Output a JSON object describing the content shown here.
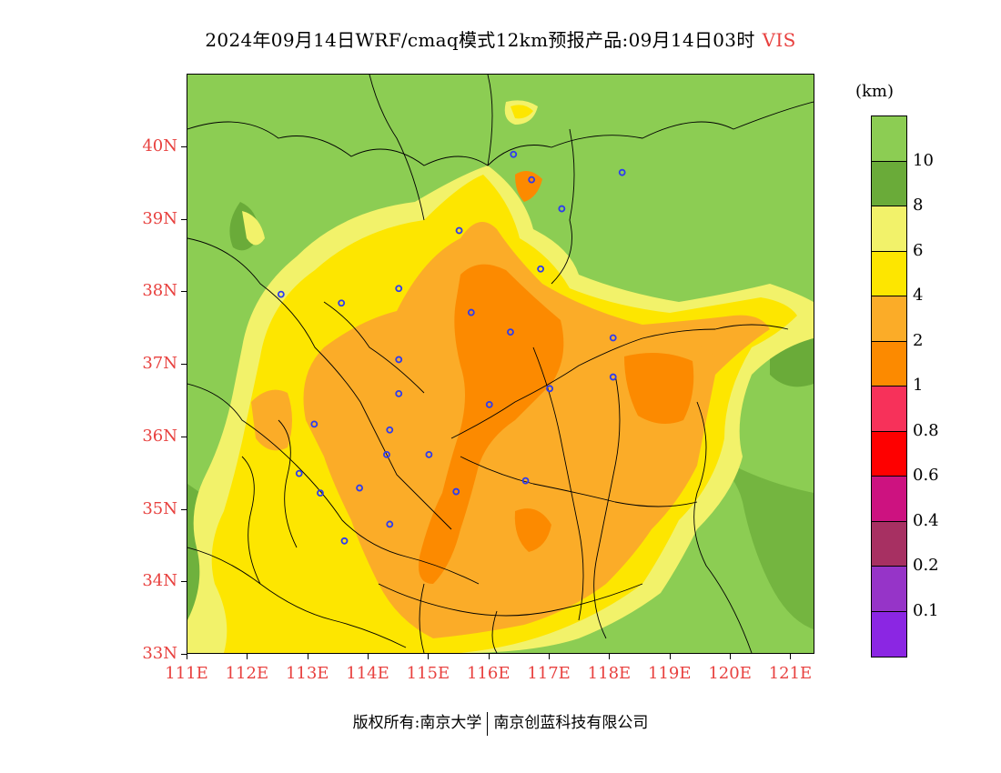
{
  "header": {
    "title": "2024年09月14日WRF/cmaq模式12km预报产品:09月14日03时",
    "variable": "VIS"
  },
  "map": {
    "lat_labels": [
      "40N",
      "39N",
      "38N",
      "37N",
      "36N",
      "35N",
      "34N",
      "33N"
    ],
    "lon_labels": [
      "111E",
      "112E",
      "113E",
      "114E",
      "115E",
      "116E",
      "117E",
      "118E",
      "119E",
      "120E",
      "121E"
    ],
    "lon_range": [
      111,
      121.4
    ],
    "lat_range": [
      33,
      41
    ],
    "city_markers": [
      {
        "lon": 116.4,
        "lat": 39.9
      },
      {
        "lon": 116.7,
        "lat": 39.55
      },
      {
        "lon": 118.2,
        "lat": 39.65
      },
      {
        "lon": 117.2,
        "lat": 39.15
      },
      {
        "lon": 115.5,
        "lat": 38.85
      },
      {
        "lon": 116.85,
        "lat": 38.32
      },
      {
        "lon": 112.55,
        "lat": 37.97
      },
      {
        "lon": 113.55,
        "lat": 37.85
      },
      {
        "lon": 114.5,
        "lat": 38.05
      },
      {
        "lon": 115.7,
        "lat": 37.72
      },
      {
        "lon": 116.35,
        "lat": 37.45
      },
      {
        "lon": 118.05,
        "lat": 37.37
      },
      {
        "lon": 114.5,
        "lat": 37.07
      },
      {
        "lon": 118.05,
        "lat": 36.83
      },
      {
        "lon": 117.0,
        "lat": 36.67
      },
      {
        "lon": 114.5,
        "lat": 36.6
      },
      {
        "lon": 116.0,
        "lat": 36.45
      },
      {
        "lon": 113.1,
        "lat": 36.18
      },
      {
        "lon": 114.35,
        "lat": 36.1
      },
      {
        "lon": 115.0,
        "lat": 35.76
      },
      {
        "lon": 114.3,
        "lat": 35.76
      },
      {
        "lon": 112.85,
        "lat": 35.5
      },
      {
        "lon": 116.6,
        "lat": 35.4
      },
      {
        "lon": 113.85,
        "lat": 35.3
      },
      {
        "lon": 113.2,
        "lat": 35.23
      },
      {
        "lon": 115.45,
        "lat": 35.25
      },
      {
        "lon": 114.35,
        "lat": 34.8
      },
      {
        "lon": 113.6,
        "lat": 34.57
      }
    ]
  },
  "colorbar": {
    "unit": "(km)",
    "colors": [
      "#8ccd53",
      "#6aab39",
      "#f2f26a",
      "#fde600",
      "#fbac28",
      "#fc8a00",
      "#f7315a",
      "#fe0000",
      "#cd1280",
      "#a73062",
      "#9634c8",
      "#8b26e3"
    ],
    "labels": [
      "10",
      "8",
      "6",
      "4",
      "2",
      "1",
      "0.8",
      "0.6",
      "0.4",
      "0.2",
      "0.1"
    ]
  },
  "footer": {
    "copyright": "版权所有:南京大学",
    "company": "南京创蓝科技有限公司"
  }
}
